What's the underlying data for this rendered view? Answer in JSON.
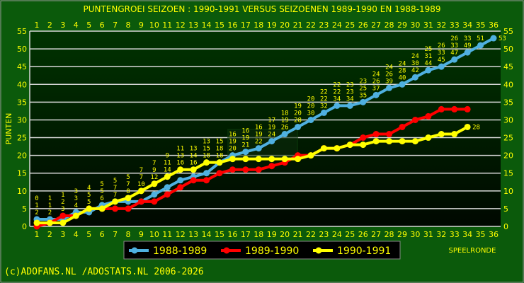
{
  "chart_data": {
    "type": "line",
    "title": "PUNTENGROEI  SEIZOEN : 1990-1991 VERSUS SEIZOENEN 1989-1990 EN 1988-1989",
    "xlabel": "SPEELRONDE",
    "ylabel": "PUNTEN",
    "xlim": [
      1,
      36
    ],
    "ylim": [
      0,
      55
    ],
    "yticks": [
      0,
      5,
      10,
      15,
      20,
      25,
      30,
      35,
      40,
      45,
      50,
      55
    ],
    "grid": true,
    "legend_placement": "bottom",
    "series": [
      {
        "name": "1988-1989",
        "color": "#4fb0e0",
        "values": [
          2,
          2,
          2,
          4,
          4,
          6,
          7,
          7,
          7,
          9,
          11,
          13,
          14,
          15,
          18,
          20,
          21,
          22,
          24,
          26,
          28,
          30,
          32,
          34,
          34,
          35,
          37,
          39,
          40,
          42,
          44,
          45,
          47,
          49,
          51,
          53
        ]
      },
      {
        "name": "1989-1990",
        "color": "#ff0000",
        "values": [
          0,
          1,
          3,
          3,
          5,
          5,
          5,
          5,
          7,
          7,
          9,
          11,
          13,
          13,
          15,
          16,
          16,
          16,
          17,
          18,
          20,
          20,
          22,
          22,
          23,
          25,
          26,
          26,
          28,
          30,
          31,
          33,
          33,
          33
        ]
      },
      {
        "name": "1990-1991",
        "color": "#ffff00",
        "values": [
          1,
          1,
          1,
          3,
          5,
          5,
          7,
          8,
          10,
          12,
          14,
          16,
          16,
          18,
          18,
          19,
          19,
          19,
          19,
          19,
          19,
          20,
          22,
          22,
          23,
          23,
          24,
          24,
          24,
          24,
          25,
          26,
          26,
          28
        ]
      }
    ]
  },
  "footer": "(c)ADOFANS.NL /ADOSTATS.NL 2006-2026",
  "watermark": "ADOFANS"
}
